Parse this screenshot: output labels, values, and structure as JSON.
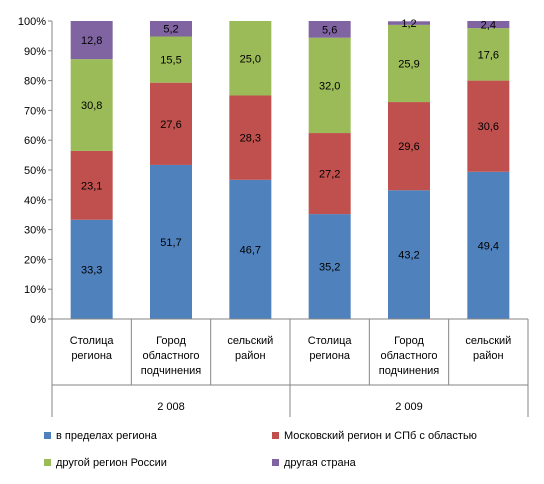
{
  "chart_data": {
    "type": "bar",
    "stacked": true,
    "percent_stacked": true,
    "categories": [
      "Столица региона",
      "Город областного подчинения",
      "сельский район",
      "Столица региона",
      "Город областного подчинения",
      "сельский район"
    ],
    "category_lines": [
      [
        "Столица",
        "региона"
      ],
      [
        "Город",
        "областного",
        "подчинения"
      ],
      [
        "сельский",
        "район"
      ],
      [
        "Столица",
        "региона"
      ],
      [
        "Город",
        "областного",
        "подчинения"
      ],
      [
        "сельский",
        "район"
      ]
    ],
    "groups": [
      {
        "label": "2 008",
        "categories": [
          0,
          1,
          2
        ]
      },
      {
        "label": "2 009",
        "categories": [
          3,
          4,
          5
        ]
      }
    ],
    "series": [
      {
        "name": "в пределах региона",
        "color": "#4f81bd",
        "values": [
          33.3,
          51.7,
          46.7,
          35.2,
          43.2,
          49.4
        ],
        "labels": [
          "33,3",
          "51,7",
          "46,7",
          "35,2",
          "43,2",
          "49,4"
        ]
      },
      {
        "name": "Московский регион и СПб с областью",
        "color": "#c0504d",
        "values": [
          23.1,
          27.6,
          28.3,
          27.2,
          29.6,
          30.6
        ],
        "labels": [
          "23,1",
          "27,6",
          "28,3",
          "27,2",
          "29,6",
          "30,6"
        ]
      },
      {
        "name": "другой регион России",
        "color": "#9bbb59",
        "values": [
          30.8,
          15.5,
          25.0,
          32.0,
          25.9,
          17.6
        ],
        "labels": [
          "30,8",
          "15,5",
          "25,0",
          "32,0",
          "25,9",
          "17,6"
        ]
      },
      {
        "name": "другая страна",
        "color": "#8064a2",
        "values": [
          12.8,
          5.2,
          0,
          5.6,
          1.2,
          2.4
        ],
        "labels": [
          "12,8",
          "5,2",
          "",
          "5,6",
          "1,2",
          "2,4"
        ]
      }
    ],
    "y_ticks": [
      "0%",
      "10%",
      "20%",
      "30%",
      "40%",
      "50%",
      "60%",
      "70%",
      "80%",
      "90%",
      "100%"
    ],
    "ylim": [
      0,
      100
    ],
    "grid": false,
    "legend": {
      "position": "bottom",
      "rows": [
        [
          "в пределах региона",
          "Московский регион и СПб с областью"
        ],
        [
          "другой регион России",
          "другая страна"
        ]
      ]
    }
  }
}
